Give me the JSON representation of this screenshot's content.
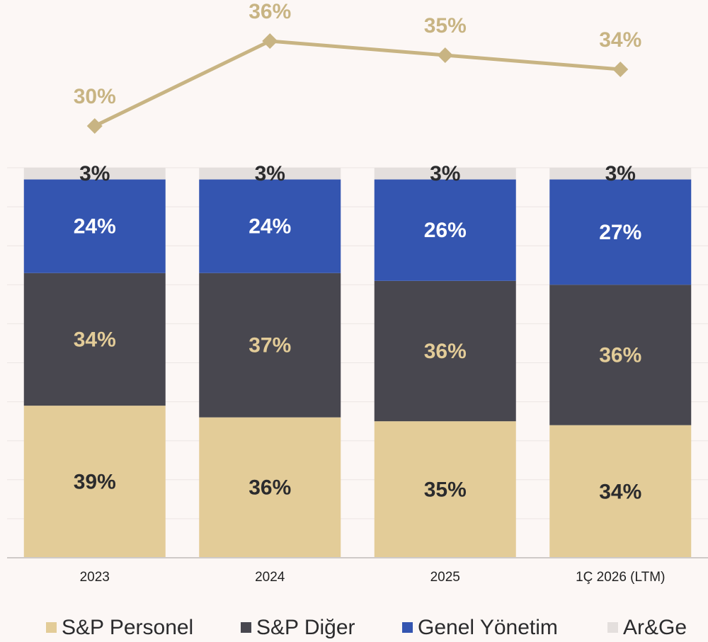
{
  "chart_data": {
    "type": "stacked-bar-line",
    "categories": [
      "2023",
      "2024",
      "2025",
      "1Ç 2026 (LTM)"
    ],
    "series": [
      {
        "name": "S&P Personel",
        "color": "#e3cc98",
        "label_color": "#2b2b2d",
        "values": [
          39,
          36,
          35,
          34
        ],
        "value_labels": [
          "39%",
          "36%",
          "35%",
          "34%"
        ]
      },
      {
        "name": "S&P Diğer",
        "color": "#48474f",
        "label_color": "#e3cc98",
        "values": [
          34,
          37,
          36,
          36
        ],
        "value_labels": [
          "34%",
          "37%",
          "36%",
          "36%"
        ]
      },
      {
        "name": "Genel Yönetim",
        "color": "#3455b0",
        "label_color": "#ffffff",
        "values": [
          24,
          24,
          26,
          27
        ],
        "value_labels": [
          "24%",
          "24%",
          "26%",
          "27%"
        ]
      },
      {
        "name": "Ar&Ge",
        "color": "#e4dfdd",
        "label_color": "#2b2b2d",
        "values": [
          3,
          3,
          3,
          3
        ],
        "value_labels": [
          "3%",
          "3%",
          "3%",
          "3%"
        ]
      }
    ],
    "line": {
      "color": "#c8b483",
      "axis": "y2",
      "values": [
        30,
        36,
        35,
        34
      ],
      "value_labels": [
        "30%",
        "36%",
        "35%",
        "34%"
      ]
    },
    "ylim": [
      0,
      100
    ],
    "yticks": [
      0,
      10,
      20,
      30,
      40,
      50,
      60,
      70,
      80,
      90,
      100
    ],
    "grid": true,
    "y2lim": [
      27,
      38
    ],
    "legend": "bottom"
  }
}
